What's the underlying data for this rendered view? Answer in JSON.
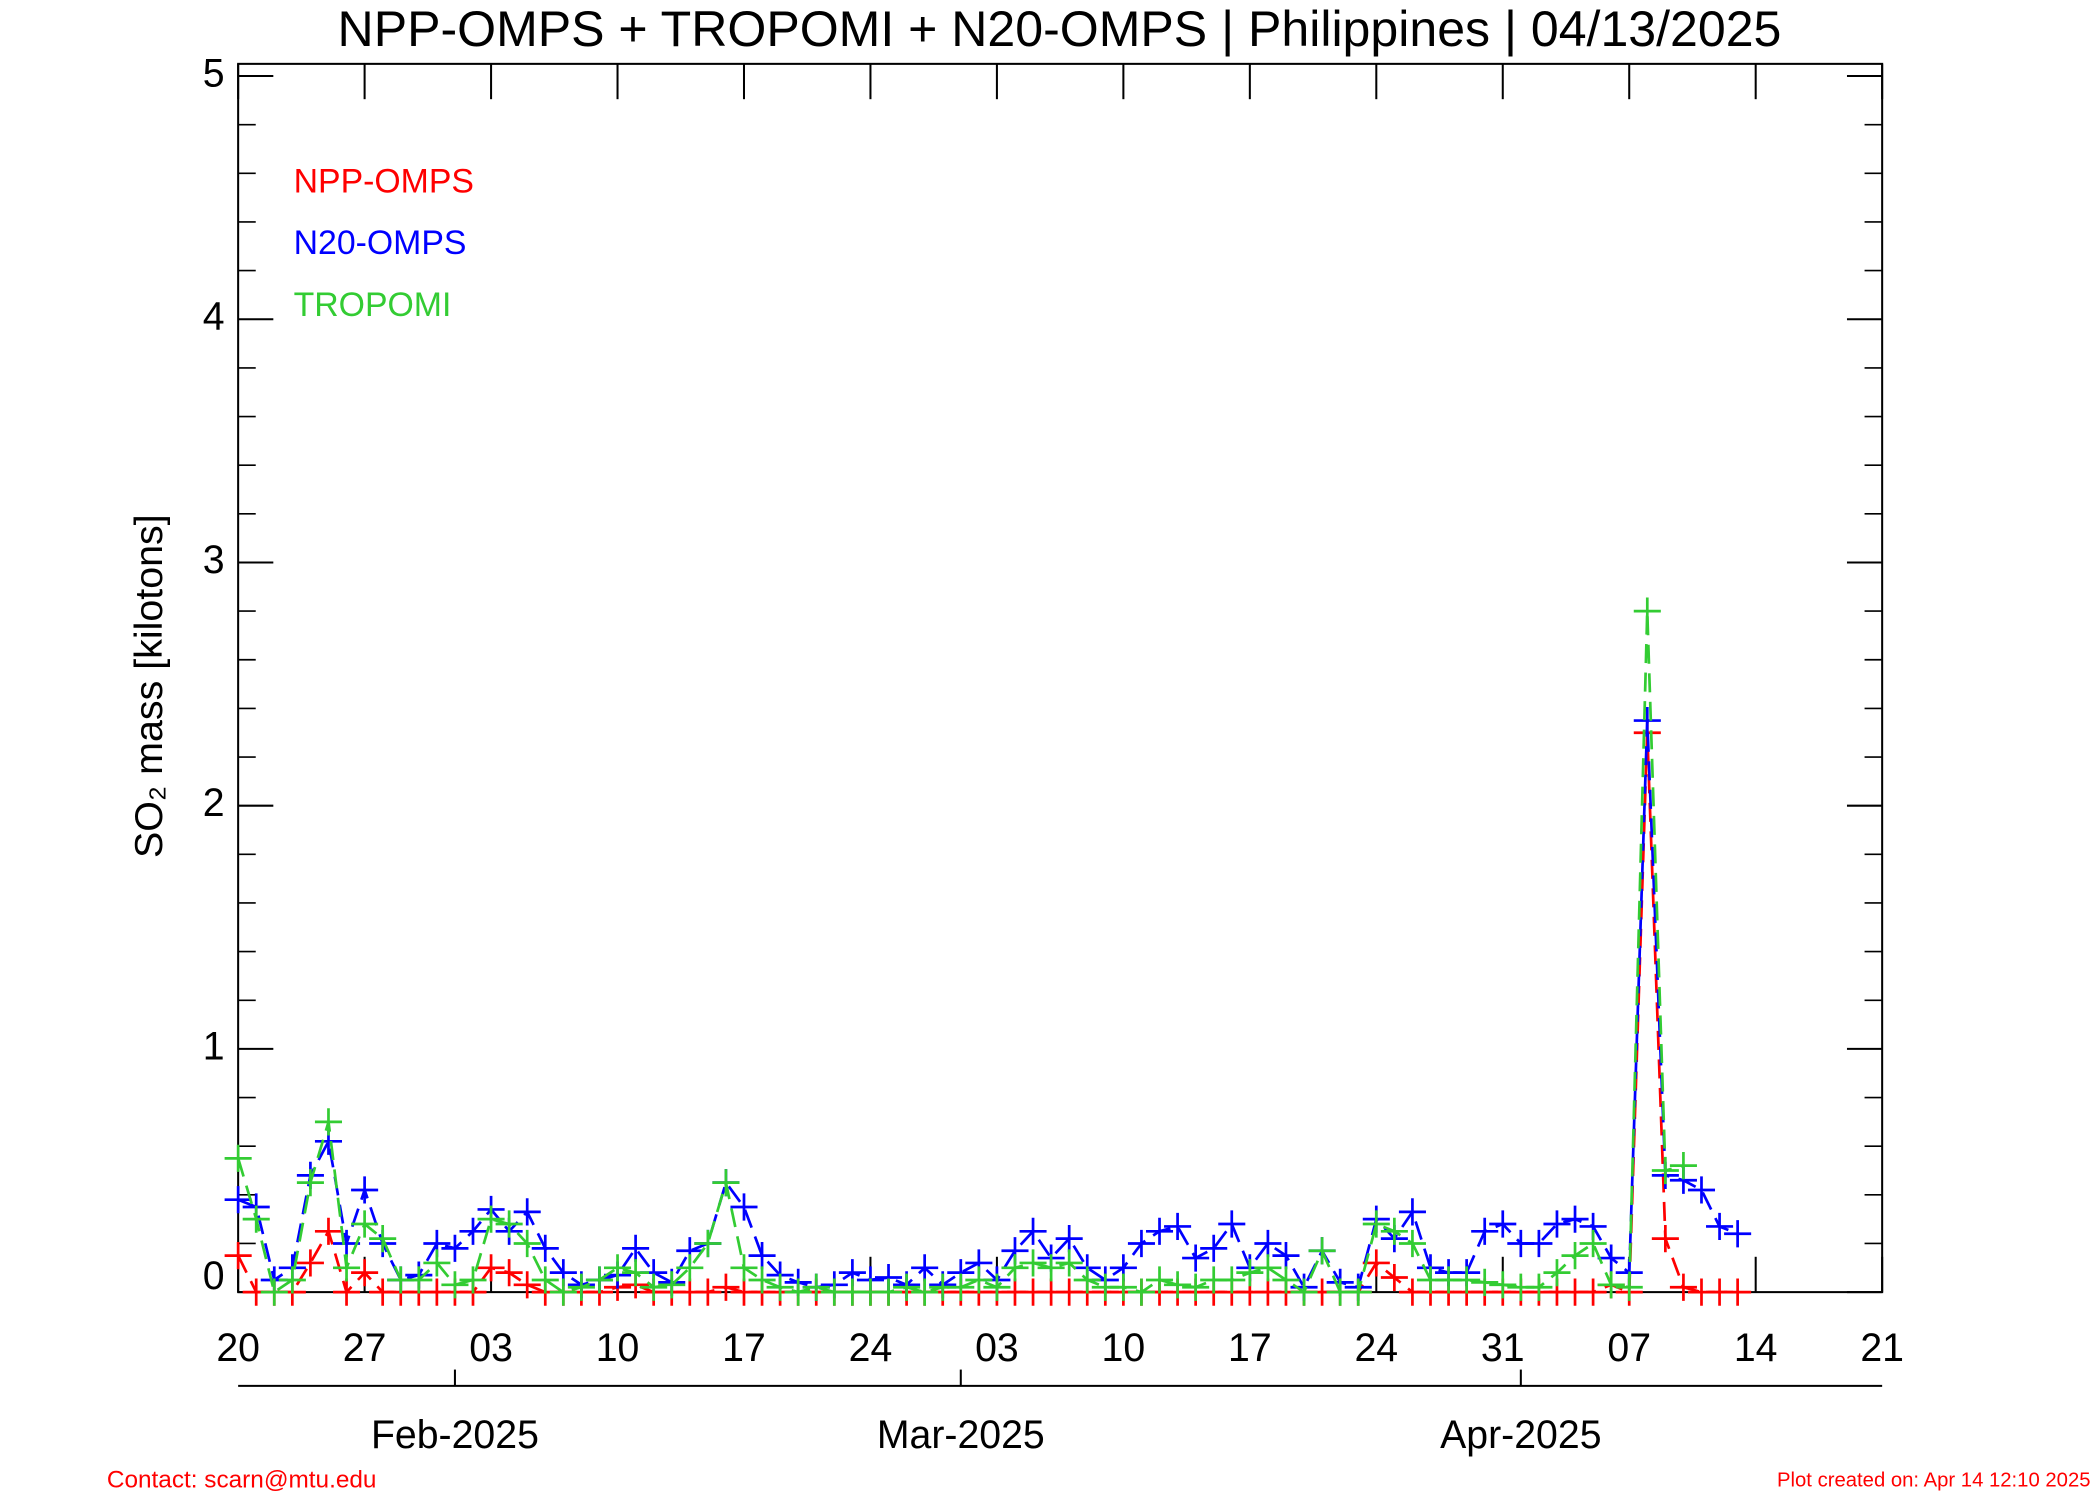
{
  "chart_data": {
    "type": "line",
    "title": "NPP-OMPS + TROPOMI + N20-OMPS | Philippines | 04/13/2025",
    "ylabel": "SO₂ mass [kilotons]",
    "footer_left": "Contact: scarn@mtu.edu",
    "footer_right": "Plot created on: Apr 14 12:10 2025",
    "legend": "upper left",
    "x": [
      "2025-01-20",
      "2025-01-21",
      "2025-01-22",
      "2025-01-23",
      "2025-01-24",
      "2025-01-25",
      "2025-01-26",
      "2025-01-27",
      "2025-01-28",
      "2025-01-29",
      "2025-01-30",
      "2025-01-31",
      "2025-02-01",
      "2025-02-02",
      "2025-02-03",
      "2025-02-04",
      "2025-02-05",
      "2025-02-06",
      "2025-02-07",
      "2025-02-08",
      "2025-02-09",
      "2025-02-10",
      "2025-02-11",
      "2025-02-12",
      "2025-02-13",
      "2025-02-14",
      "2025-02-15",
      "2025-02-16",
      "2025-02-17",
      "2025-02-18",
      "2025-02-19",
      "2025-02-20",
      "2025-02-21",
      "2025-02-22",
      "2025-02-23",
      "2025-02-24",
      "2025-02-25",
      "2025-02-26",
      "2025-02-27",
      "2025-02-28",
      "2025-03-01",
      "2025-03-02",
      "2025-03-03",
      "2025-03-04",
      "2025-03-05",
      "2025-03-06",
      "2025-03-07",
      "2025-03-08",
      "2025-03-09",
      "2025-03-10",
      "2025-03-11",
      "2025-03-12",
      "2025-03-13",
      "2025-03-14",
      "2025-03-15",
      "2025-03-16",
      "2025-03-17",
      "2025-03-18",
      "2025-03-19",
      "2025-03-20",
      "2025-03-21",
      "2025-03-22",
      "2025-03-23",
      "2025-03-24",
      "2025-03-25",
      "2025-03-26",
      "2025-03-27",
      "2025-03-28",
      "2025-03-29",
      "2025-03-30",
      "2025-03-31",
      "2025-04-01",
      "2025-04-02",
      "2025-04-03",
      "2025-04-04",
      "2025-04-05",
      "2025-04-06",
      "2025-04-07",
      "2025-04-08",
      "2025-04-09",
      "2025-04-10",
      "2025-04-11",
      "2025-04-12",
      "2025-04-13"
    ],
    "series": [
      {
        "name": "NPP-OMPS",
        "color": "#ff0000",
        "values": [
          0.15,
          0,
          0,
          0,
          0.12,
          0.25,
          0,
          0.08,
          0,
          0,
          0,
          0,
          0,
          0,
          0.1,
          0.08,
          0.03,
          0,
          0,
          0,
          0,
          0.02,
          0.03,
          0,
          0,
          0,
          0,
          0.02,
          0,
          0,
          0,
          0,
          0,
          0,
          0,
          0,
          0,
          0,
          0,
          0,
          0,
          0,
          0,
          0,
          0,
          0,
          0,
          0,
          0,
          0,
          0,
          0,
          0,
          0,
          0,
          0,
          0,
          0,
          0,
          0,
          0,
          0,
          0,
          0.12,
          0.06,
          0,
          0,
          0,
          0,
          0,
          0,
          0,
          0,
          0,
          0,
          0,
          0.03,
          0,
          2.3,
          0.22,
          0.02,
          0,
          0,
          0
        ]
      },
      {
        "name": "N20-OMPS",
        "color": "#0000ff",
        "values": [
          0.38,
          0.35,
          0.05,
          0.1,
          0.48,
          0.62,
          0.2,
          0.42,
          0.2,
          0.05,
          0.07,
          0.2,
          0.18,
          0.25,
          0.34,
          0.25,
          0.33,
          0.18,
          0.08,
          0.03,
          0.05,
          0.07,
          0.18,
          0.08,
          0.04,
          0.17,
          0.2,
          0.45,
          0.35,
          0.15,
          0.07,
          0.04,
          0.02,
          0.03,
          0.08,
          0.05,
          0.06,
          0.03,
          0.1,
          0.03,
          0.08,
          0.12,
          0.05,
          0.17,
          0.25,
          0.14,
          0.22,
          0.1,
          0.05,
          0.1,
          0.2,
          0.25,
          0.27,
          0.14,
          0.18,
          0.28,
          0.1,
          0.2,
          0.15,
          0.02,
          0.17,
          0.04,
          0.02,
          0.3,
          0.22,
          0.33,
          0.1,
          0.08,
          0.08,
          0.25,
          0.28,
          0.2,
          0.2,
          0.28,
          0.3,
          0.27,
          0.14,
          0.08,
          2.35,
          0.48,
          0.46,
          0.42,
          0.27,
          0.24
        ]
      },
      {
        "name": "TROPOMI",
        "color": "#33cc33",
        "values": [
          0.55,
          0.3,
          0,
          0.05,
          0.45,
          0.7,
          0.1,
          0.28,
          0.22,
          0.05,
          0.05,
          0.12,
          0.03,
          0.05,
          0.3,
          0.28,
          0.2,
          0.05,
          0,
          0.02,
          0.05,
          0.1,
          0.08,
          0.02,
          0.03,
          0.1,
          0.2,
          0.45,
          0.1,
          0.05,
          0.02,
          0,
          0.02,
          0,
          0,
          0,
          0,
          0.02,
          0,
          0.02,
          0.02,
          0.05,
          0.02,
          0.1,
          0.12,
          0.1,
          0.12,
          0.05,
          0.02,
          0.02,
          0,
          0.05,
          0.03,
          0.02,
          0.05,
          0.05,
          0.08,
          0.1,
          0.05,
          0,
          0.17,
          0,
          0,
          0.28,
          0.25,
          0.2,
          0.05,
          0.05,
          0.05,
          0.04,
          0.03,
          0.02,
          0.02,
          0.08,
          0.15,
          0.2,
          0.03,
          0.02,
          2.8,
          0.5,
          0.52,
          null,
          null,
          null
        ]
      }
    ],
    "xlim": [
      "2025-01-20",
      "2025-04-21"
    ],
    "xticks": [
      {
        "value": "2025-01-20",
        "label": "20"
      },
      {
        "value": "2025-01-27",
        "label": "27"
      },
      {
        "value": "2025-02-03",
        "label": "03"
      },
      {
        "value": "2025-02-10",
        "label": "10"
      },
      {
        "value": "2025-02-17",
        "label": "17"
      },
      {
        "value": "2025-02-24",
        "label": "24"
      },
      {
        "value": "2025-03-03",
        "label": "03"
      },
      {
        "value": "2025-03-10",
        "label": "10"
      },
      {
        "value": "2025-03-17",
        "label": "17"
      },
      {
        "value": "2025-03-24",
        "label": "24"
      },
      {
        "value": "2025-03-31",
        "label": "31"
      },
      {
        "value": "2025-04-07",
        "label": "07"
      },
      {
        "value": "2025-04-14",
        "label": "14"
      },
      {
        "value": "2025-04-21",
        "label": "21"
      }
    ],
    "month_ticks": [
      {
        "value": "2025-02-01",
        "label": "Feb-2025"
      },
      {
        "value": "2025-03-01",
        "label": "Mar-2025"
      },
      {
        "value": "2025-04-01",
        "label": "Apr-2025"
      }
    ],
    "ylim": [
      0,
      5.05
    ],
    "yticks": [
      0,
      1,
      2,
      3,
      4,
      5
    ],
    "yticks_minor": [
      0.2,
      0.4,
      0.6,
      0.8,
      1.2,
      1.4,
      1.6,
      1.8,
      2.2,
      2.4,
      2.6,
      2.8,
      3.2,
      3.4,
      3.6,
      3.8,
      4.2,
      4.4,
      4.6,
      4.8
    ],
    "grid": false
  }
}
